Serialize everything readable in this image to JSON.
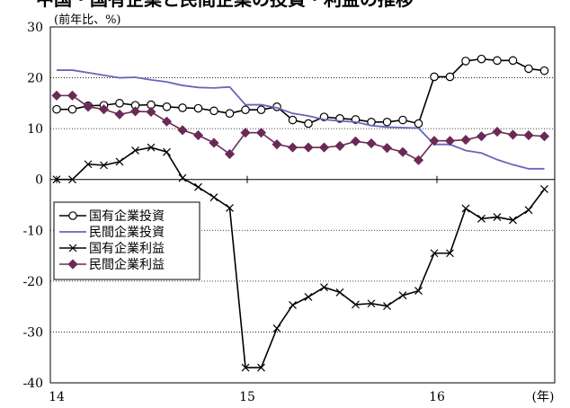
{
  "chart_data": {
    "type": "line",
    "title_fragment": "中国・国有企業と民間企業の投資・利益の推移",
    "ylabel": "(前年比、%)",
    "xunit": "(年)",
    "ylim": [
      -40,
      30
    ],
    "yticks": [
      30,
      20,
      10,
      0,
      -10,
      -20,
      -30,
      -40
    ],
    "x_tick_labels": [
      "14",
      "15",
      "16"
    ],
    "grid": "horizontal-dotted",
    "legend_position": "left-middle",
    "colors": {
      "国有企業投資": "#000000",
      "民間企業投資": "#6666bb",
      "国有企業利益": "#000000",
      "民間企業利益": "#6b2a55"
    },
    "series": [
      {
        "name": "国有企業投資",
        "marker": "circle-open",
        "start_index": 0,
        "values": [
          13.8,
          13.8,
          14.5,
          14.6,
          15.0,
          14.6,
          14.7,
          14.3,
          14.1,
          14.0,
          13.5,
          13.0,
          13.7,
          13.7,
          14.3,
          11.7,
          11.0,
          12.3,
          12.0,
          11.8,
          11.3,
          11.3,
          11.7,
          11.0,
          20.2,
          20.2,
          23.3,
          23.7,
          23.4,
          23.4,
          21.8,
          21.4
        ]
      },
      {
        "name": "民間企業投資",
        "marker": "none",
        "start_index": 0,
        "values": [
          21.5,
          21.5,
          21.0,
          20.5,
          20.0,
          20.1,
          19.6,
          19.2,
          18.5,
          18.1,
          18.0,
          18.2,
          14.7,
          14.7,
          14.1,
          13.0,
          12.5,
          11.8,
          11.5,
          11.3,
          10.6,
          10.3,
          10.2,
          10.1,
          6.9,
          6.9,
          5.7,
          5.2,
          3.9,
          2.9,
          2.1,
          2.1
        ]
      },
      {
        "name": "国有企業利益",
        "marker": "x",
        "start_index": 0,
        "values": [
          0.0,
          0.0,
          3.0,
          2.8,
          3.5,
          5.7,
          6.3,
          5.4,
          0.3,
          -1.5,
          -3.5,
          -5.6,
          -37.0,
          -37.0,
          -29.3,
          -24.7,
          -23.1,
          -21.2,
          -22.2,
          -24.6,
          -24.4,
          -24.9,
          -22.8,
          -21.9,
          -14.5,
          -14.5,
          -5.7,
          -7.7,
          -7.4,
          -8.0,
          -6.0,
          -1.9
        ]
      },
      {
        "name": "民間企業利益",
        "marker": "diamond-filled",
        "start_index": 0,
        "values": [
          16.5,
          16.5,
          14.3,
          13.8,
          12.8,
          13.4,
          13.3,
          11.4,
          9.7,
          8.7,
          7.2,
          5.0,
          9.2,
          9.2,
          6.9,
          6.3,
          6.3,
          6.3,
          6.6,
          7.5,
          7.1,
          6.2,
          5.4,
          3.8,
          7.6,
          7.6,
          7.8,
          8.5,
          9.4,
          8.8,
          8.7,
          8.5
        ]
      }
    ]
  }
}
